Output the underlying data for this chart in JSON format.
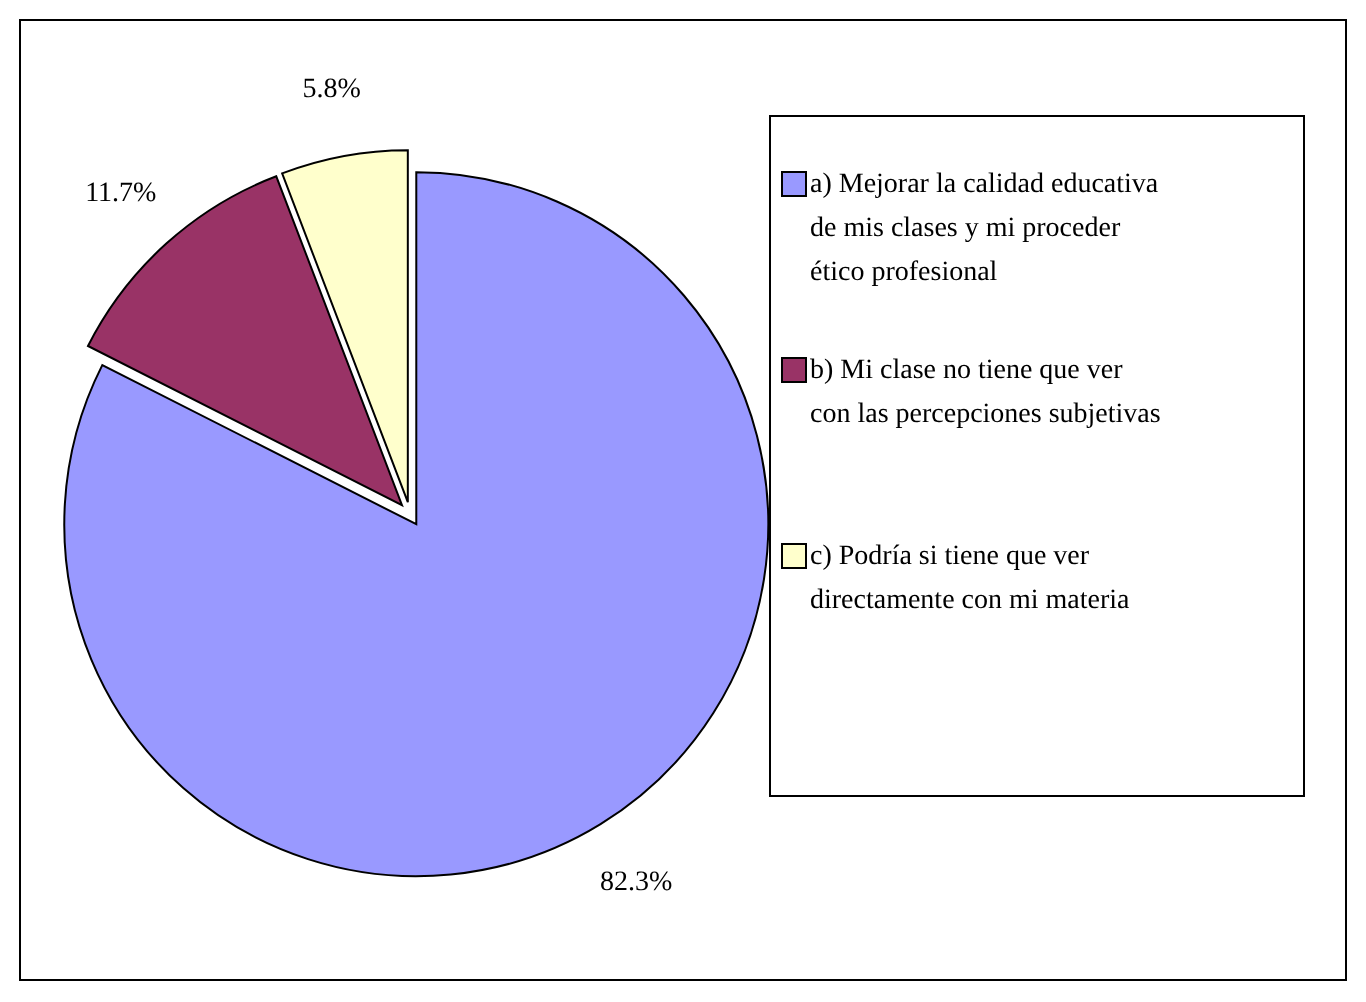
{
  "chart_data": {
    "type": "pie",
    "categories": [
      "a) Mejorar la calidad educativa de mis clases y mi proceder ético profesional",
      "b) Mi clase no tiene que ver con las percepciones subjetivas",
      "c) Podría si tiene que ver directamente con mi materia"
    ],
    "values": [
      82.3,
      11.7,
      5.8
    ],
    "colors": [
      "#9999ff",
      "#993366",
      "#ffffcc"
    ],
    "value_labels": [
      "82.3%",
      "11.7%",
      "5.8%"
    ],
    "legend": "right"
  }
}
